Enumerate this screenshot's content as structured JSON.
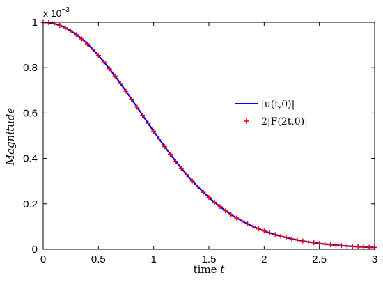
{
  "chart_data": {
    "type": "line",
    "title": "",
    "xlabel_prefix": "time ",
    "xlabel_var": "t",
    "ylabel": "Magnitude",
    "y_exponent_prefix": "x 10",
    "y_exponent_power": "−3",
    "xlim": [
      0,
      3
    ],
    "ylim": [
      0,
      1
    ],
    "y_scale_note": "values shown in units of 1e-3",
    "x_ticks": [
      0,
      0.5,
      1,
      1.5,
      2,
      2.5,
      3
    ],
    "x_tick_labels": [
      "0",
      "0.5",
      "1",
      "1.5",
      "2",
      "2.5",
      "3"
    ],
    "y_ticks": [
      0,
      0.2,
      0.4,
      0.6,
      0.8,
      1
    ],
    "y_tick_labels": [
      "0",
      "0.2",
      "0.4",
      "0.6",
      "0.8",
      "1"
    ],
    "grid": false,
    "legend_position": "right-center",
    "legend_entries": [
      "|u(t,0)|",
      "2|F(2t,0)|"
    ],
    "series": [
      {
        "name": "|u(t,0)|",
        "style": "line",
        "color": "#0000ff",
        "x": [
          0,
          0.05,
          0.1,
          0.15,
          0.2,
          0.25,
          0.3,
          0.35,
          0.4,
          0.45,
          0.5,
          0.55,
          0.6,
          0.65,
          0.7,
          0.75,
          0.8,
          0.85,
          0.9,
          0.95,
          1.0,
          1.05,
          1.1,
          1.15,
          1.2,
          1.25,
          1.3,
          1.35,
          1.4,
          1.45,
          1.5,
          1.55,
          1.6,
          1.65,
          1.7,
          1.75,
          1.8,
          1.85,
          1.9,
          1.95,
          2.0,
          2.05,
          2.1,
          2.15,
          2.2,
          2.25,
          2.3,
          2.35,
          2.4,
          2.45,
          2.5,
          2.55,
          2.6,
          2.65,
          2.7,
          2.75,
          2.8,
          2.85,
          2.9,
          2.95,
          3.0
        ],
        "y": [
          1.0,
          0.9985,
          0.9939,
          0.9863,
          0.9757,
          0.9621,
          0.9456,
          0.9264,
          0.9046,
          0.8803,
          0.8538,
          0.8253,
          0.795,
          0.7631,
          0.73,
          0.6959,
          0.661,
          0.6257,
          0.5903,
          0.5549,
          0.5199,
          0.4854,
          0.4518,
          0.4191,
          0.3875,
          0.3572,
          0.3284,
          0.301,
          0.2752,
          0.2509,
          0.2283,
          0.2073,
          0.1878,
          0.1698,
          0.1533,
          0.1382,
          0.1244,
          0.1118,
          0.1003,
          0.09,
          0.0806,
          0.0721,
          0.0645,
          0.0576,
          0.0515,
          0.0459,
          0.0409,
          0.0365,
          0.0325,
          0.0289,
          0.0257,
          0.0228,
          0.0203,
          0.018,
          0.016,
          0.0142,
          0.0126,
          0.0112,
          0.0099,
          0.0088,
          0.0078
        ]
      },
      {
        "name": "2|F(2t,0)|",
        "style": "markers",
        "marker": "+",
        "color": "#ff0000",
        "x": [
          0,
          0.05,
          0.1,
          0.15,
          0.2,
          0.25,
          0.3,
          0.35,
          0.4,
          0.45,
          0.5,
          0.55,
          0.6,
          0.65,
          0.7,
          0.75,
          0.8,
          0.85,
          0.9,
          0.95,
          1.0,
          1.05,
          1.1,
          1.15,
          1.2,
          1.25,
          1.3,
          1.35,
          1.4,
          1.45,
          1.5,
          1.55,
          1.6,
          1.65,
          1.7,
          1.75,
          1.8,
          1.85,
          1.9,
          1.95,
          2.0,
          2.05,
          2.1,
          2.15,
          2.2,
          2.25,
          2.3,
          2.35,
          2.4,
          2.45,
          2.5,
          2.55,
          2.6,
          2.65,
          2.7,
          2.75,
          2.8,
          2.85,
          2.9,
          2.95,
          3.0
        ],
        "y": [
          1.0,
          0.9985,
          0.9939,
          0.9863,
          0.9757,
          0.9621,
          0.9456,
          0.9264,
          0.9046,
          0.8803,
          0.8538,
          0.8253,
          0.795,
          0.7631,
          0.73,
          0.6959,
          0.661,
          0.6257,
          0.5903,
          0.5549,
          0.5199,
          0.4854,
          0.4518,
          0.4191,
          0.3875,
          0.3572,
          0.3284,
          0.301,
          0.2752,
          0.2509,
          0.2283,
          0.2073,
          0.1878,
          0.1698,
          0.1533,
          0.1382,
          0.1244,
          0.1118,
          0.1003,
          0.09,
          0.0806,
          0.0721,
          0.0645,
          0.0576,
          0.0515,
          0.0459,
          0.0409,
          0.0365,
          0.0325,
          0.0289,
          0.0257,
          0.0228,
          0.0203,
          0.018,
          0.016,
          0.0142,
          0.0126,
          0.0112,
          0.0099,
          0.0088,
          0.0078
        ]
      }
    ]
  }
}
